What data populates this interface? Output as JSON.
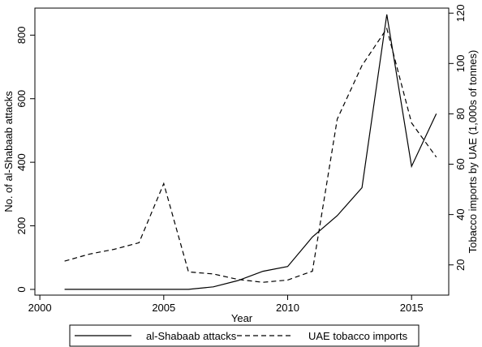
{
  "chart_data": {
    "type": "line",
    "xlabel": "Year",
    "ylabel_left": "No. of al-Shabaab attacks",
    "ylabel_right": "Tobacco imports by UAE (1,000s of tonnes)",
    "xlim": [
      1999.8,
      2016.5
    ],
    "ylim_left": [
      -18,
      885
    ],
    "ylim_right": [
      8,
      122
    ],
    "x_ticks": [
      2000,
      2005,
      2010,
      2015
    ],
    "y_left_ticks": [
      0,
      200,
      400,
      600,
      800
    ],
    "y_right_ticks": [
      20,
      40,
      60,
      80,
      100,
      120
    ],
    "legend_position": "bottom",
    "series": [
      {
        "name": "al-Shabaab attacks",
        "axis": "left",
        "style": "solid",
        "x": [
          2001,
          2002,
          2003,
          2004,
          2005,
          2006,
          2007,
          2008,
          2009,
          2010,
          2011,
          2012,
          2013,
          2014,
          2015,
          2016
        ],
        "values": [
          0,
          0,
          0,
          0,
          0,
          0,
          8,
          28,
          57,
          72,
          165,
          232,
          320,
          865,
          387,
          553
        ]
      },
      {
        "name": "UAE tobacco imports",
        "axis": "right",
        "style": "dashed",
        "x": [
          2001,
          2002,
          2003,
          2004,
          2005,
          2006,
          2007,
          2008,
          2009,
          2010,
          2011,
          2012,
          2013,
          2014,
          2015,
          2016
        ],
        "values": [
          21.5,
          24.3,
          26.2,
          28.8,
          52.3,
          17.2,
          16.4,
          14.2,
          13.1,
          14.0,
          17.5,
          77.9,
          99.2,
          113.9,
          76.4,
          62.8
        ]
      }
    ]
  }
}
